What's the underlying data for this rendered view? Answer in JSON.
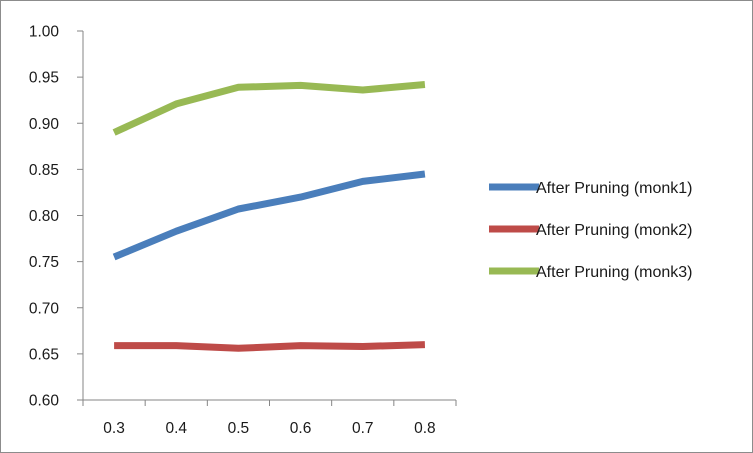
{
  "chart_data": {
    "type": "line",
    "title": "",
    "xlabel": "",
    "ylabel": "",
    "categories": [
      "0.3",
      "0.4",
      "0.5",
      "0.6",
      "0.7",
      "0.8"
    ],
    "ylim": [
      0.6,
      1.0
    ],
    "yticks": [
      "0.60",
      "0.65",
      "0.70",
      "0.75",
      "0.80",
      "0.85",
      "0.90",
      "0.95",
      "1.00"
    ],
    "grid": false,
    "legend_position": "right",
    "series": [
      {
        "name": "After Pruning (monk1)",
        "color": "#4a7ebb",
        "values": [
          0.755,
          0.783,
          0.807,
          0.82,
          0.837,
          0.845
        ]
      },
      {
        "name": "After Pruning (monk2)",
        "color": "#be4b48",
        "values": [
          0.659,
          0.659,
          0.656,
          0.659,
          0.658,
          0.66
        ]
      },
      {
        "name": "After Pruning (monk3)",
        "color": "#98b954",
        "values": [
          0.89,
          0.921,
          0.939,
          0.941,
          0.936,
          0.942
        ]
      }
    ]
  }
}
